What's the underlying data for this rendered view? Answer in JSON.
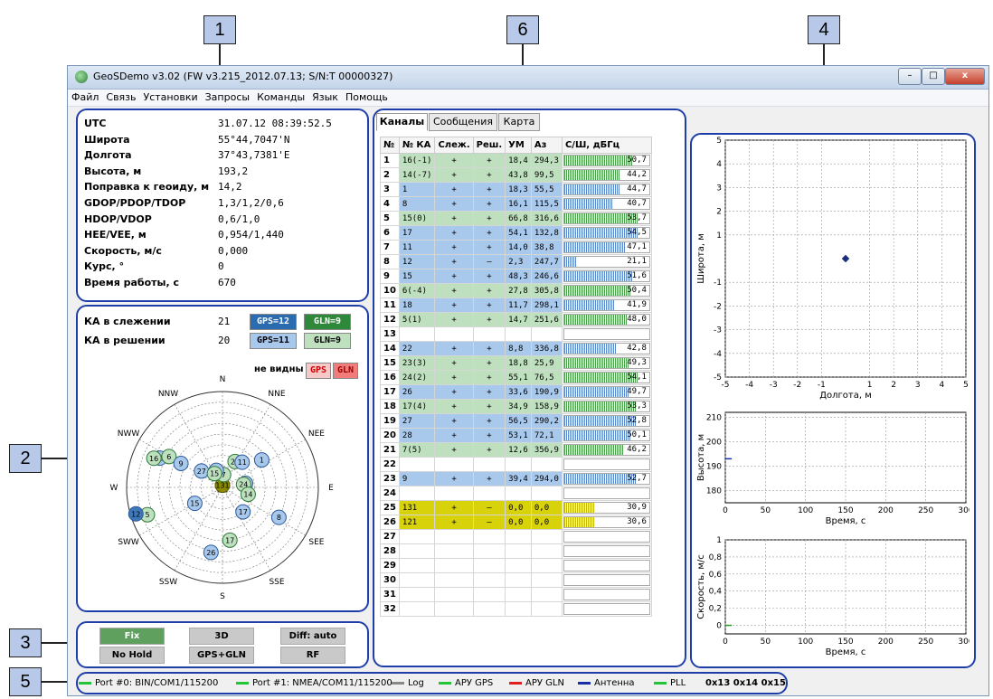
{
  "callouts": [
    "1",
    "2",
    "3",
    "4",
    "5",
    "6"
  ],
  "window": {
    "title": "GeoSDemo v3.02 (FW v3.215_2012.07.13; S/N:T 00000327)",
    "btn_min": "–",
    "btn_max": "□",
    "btn_close": "x"
  },
  "menu": [
    "Файл",
    "Связь",
    "Установки",
    "Запросы",
    "Команды",
    "Язык",
    "Помощь"
  ],
  "info": [
    {
      "label": "UTC",
      "value": "31.07.12 08:39:52.5"
    },
    {
      "label": "Широта",
      "value": "55°44,7047'N"
    },
    {
      "label": "Долгота",
      "value": "37°43,7381'E"
    },
    {
      "label": "Высота, м",
      "value": "193,2"
    },
    {
      "label": "Поправка к геоиду, м",
      "value": "14,2"
    },
    {
      "label": "GDOP/PDOP/TDOP",
      "value": "1,3/1,2/0,6"
    },
    {
      "label": "HDOP/VDOP",
      "value": "0,6/1,0"
    },
    {
      "label": "HEE/VEE, м",
      "value": "0,954/1,440"
    },
    {
      "label": "Скорость, м/с",
      "value": "0,000"
    },
    {
      "label": "Курс, °",
      "value": "0"
    },
    {
      "label": "Время работы, с",
      "value": "670"
    }
  ],
  "tracking": {
    "label": "КА в слежении",
    "count": "21",
    "gps": "GPS=12",
    "gln": "GLN=9"
  },
  "solution": {
    "label": "КА в решении",
    "count": "20",
    "gps": "GPS=11",
    "gln": "GLN=9"
  },
  "skyplot": {
    "not_visible": "не видны",
    "gps": "GPS",
    "gln": "GLN",
    "dirs": [
      "N",
      "NNE",
      "NEE",
      "E",
      "SEE",
      "SSE",
      "S",
      "SSW",
      "SWW",
      "W",
      "NWW",
      "NNW"
    ],
    "sats": [
      {
        "id": "131",
        "az": 0,
        "el": 88,
        "type": "sbas"
      },
      {
        "id": "7",
        "az": 5,
        "el": 78,
        "type": "gln"
      },
      {
        "id": "22",
        "az": 340,
        "el": 73,
        "type": "gps"
      },
      {
        "id": "23",
        "az": 26,
        "el": 63,
        "type": "gln"
      },
      {
        "id": "11",
        "az": 38,
        "el": 60,
        "type": "gps"
      },
      {
        "id": "1",
        "az": 55,
        "el": 45,
        "type": "gps"
      },
      {
        "id": "18",
        "az": 295,
        "el": 25,
        "type": "gps"
      },
      {
        "id": "6",
        "az": 300,
        "el": 32,
        "type": "gln"
      },
      {
        "id": "16",
        "az": 293,
        "el": 20,
        "type": "gln"
      },
      {
        "id": "9",
        "az": 300,
        "el": 45,
        "type": "gps"
      },
      {
        "id": "27",
        "az": 308,
        "el": 65,
        "type": "gps"
      },
      {
        "id": "15",
        "az": 330,
        "el": 75,
        "type": "gln"
      },
      {
        "id": "28",
        "az": 80,
        "el": 68,
        "type": "gps"
      },
      {
        "id": "24",
        "az": 82,
        "el": 70,
        "type": "gln"
      },
      {
        "id": "14",
        "az": 105,
        "el": 65,
        "type": "gln"
      },
      {
        "id": "8",
        "az": 118,
        "el": 30,
        "type": "gps"
      },
      {
        "id": "17",
        "az": 140,
        "el": 60,
        "type": "gps"
      },
      {
        "id": "17",
        "az": 172,
        "el": 40,
        "type": "gln"
      },
      {
        "id": "26",
        "az": 190,
        "el": 28,
        "type": "gps"
      },
      {
        "id": "15",
        "az": 240,
        "el": 60,
        "type": "gps"
      },
      {
        "id": "5",
        "az": 250,
        "el": 15,
        "type": "gln"
      },
      {
        "id": "12",
        "az": 253,
        "el": 5,
        "type": "gps"
      }
    ]
  },
  "controls": [
    "Fix",
    "3D",
    "Diff: auto",
    "No Hold",
    "GPS+GLN",
    "RF"
  ],
  "tabs": [
    "Каналы",
    "Сообщения",
    "Карта"
  ],
  "channels": {
    "headers": [
      "№",
      "№ КА",
      "Слеж.",
      "Реш.",
      "УМ",
      "Аз",
      "С/Ш, дБГц"
    ],
    "rows": [
      {
        "n": "1",
        "ka": "16(-1)",
        "trk": "+",
        "sol": "+",
        "el": "18,4",
        "az": "294,3",
        "snr": "50,7",
        "t": "gln"
      },
      {
        "n": "2",
        "ka": "14(-7)",
        "trk": "+",
        "sol": "+",
        "el": "43,8",
        "az": "99,5",
        "snr": "44,2",
        "t": "gln"
      },
      {
        "n": "3",
        "ka": "1",
        "trk": "+",
        "sol": "+",
        "el": "18,3",
        "az": "55,5",
        "snr": "44,7",
        "t": "gps"
      },
      {
        "n": "4",
        "ka": "8",
        "trk": "+",
        "sol": "+",
        "el": "16,1",
        "az": "115,5",
        "snr": "40,7",
        "t": "gps"
      },
      {
        "n": "5",
        "ka": "15(0)",
        "trk": "+",
        "sol": "+",
        "el": "66,8",
        "az": "316,6",
        "snr": "53,7",
        "t": "gln"
      },
      {
        "n": "6",
        "ka": "17",
        "trk": "+",
        "sol": "+",
        "el": "54,1",
        "az": "132,8",
        "snr": "54,5",
        "t": "gps"
      },
      {
        "n": "7",
        "ka": "11",
        "trk": "+",
        "sol": "+",
        "el": "14,0",
        "az": "38,8",
        "snr": "47,1",
        "t": "gps"
      },
      {
        "n": "8",
        "ka": "12",
        "trk": "+",
        "sol": "–",
        "el": "2,3",
        "az": "247,7",
        "snr": "21,1",
        "t": "gps"
      },
      {
        "n": "9",
        "ka": "15",
        "trk": "+",
        "sol": "+",
        "el": "48,3",
        "az": "246,6",
        "snr": "51,6",
        "t": "gps"
      },
      {
        "n": "10",
        "ka": "6(-4)",
        "trk": "+",
        "sol": "+",
        "el": "27,8",
        "az": "305,8",
        "snr": "50,4",
        "t": "gln"
      },
      {
        "n": "11",
        "ka": "18",
        "trk": "+",
        "sol": "+",
        "el": "11,7",
        "az": "298,1",
        "snr": "41,9",
        "t": "gps"
      },
      {
        "n": "12",
        "ka": "5(1)",
        "trk": "+",
        "sol": "+",
        "el": "14,7",
        "az": "251,6",
        "snr": "48,0",
        "t": "gln"
      },
      {
        "n": "13",
        "ka": "",
        "trk": "",
        "sol": "",
        "el": "",
        "az": "",
        "snr": "",
        "t": ""
      },
      {
        "n": "14",
        "ka": "22",
        "trk": "+",
        "sol": "+",
        "el": "8,8",
        "az": "336,8",
        "snr": "42,8",
        "t": "gps"
      },
      {
        "n": "15",
        "ka": "23(3)",
        "trk": "+",
        "sol": "+",
        "el": "18,8",
        "az": "25,9",
        "snr": "49,3",
        "t": "gln"
      },
      {
        "n": "16",
        "ka": "24(2)",
        "trk": "+",
        "sol": "+",
        "el": "55,1",
        "az": "76,5",
        "snr": "54,1",
        "t": "gln"
      },
      {
        "n": "17",
        "ka": "26",
        "trk": "+",
        "sol": "+",
        "el": "33,6",
        "az": "190,9",
        "snr": "49,7",
        "t": "gps"
      },
      {
        "n": "18",
        "ka": "17(4)",
        "trk": "+",
        "sol": "+",
        "el": "34,9",
        "az": "158,9",
        "snr": "53,3",
        "t": "gln"
      },
      {
        "n": "19",
        "ka": "27",
        "trk": "+",
        "sol": "+",
        "el": "56,5",
        "az": "290,2",
        "snr": "52,8",
        "t": "gps"
      },
      {
        "n": "20",
        "ka": "28",
        "trk": "+",
        "sol": "+",
        "el": "53,1",
        "az": "72,1",
        "snr": "50,1",
        "t": "gps"
      },
      {
        "n": "21",
        "ka": "7(5)",
        "trk": "+",
        "sol": "+",
        "el": "12,6",
        "az": "356,9",
        "snr": "46,2",
        "t": "gln"
      },
      {
        "n": "22",
        "ka": "",
        "trk": "",
        "sol": "",
        "el": "",
        "az": "",
        "snr": "",
        "t": ""
      },
      {
        "n": "23",
        "ka": "9",
        "trk": "+",
        "sol": "+",
        "el": "39,4",
        "az": "294,0",
        "snr": "52,7",
        "t": "gps"
      },
      {
        "n": "24",
        "ka": "",
        "trk": "",
        "sol": "",
        "el": "",
        "az": "",
        "snr": "",
        "t": ""
      },
      {
        "n": "25",
        "ka": "131",
        "trk": "+",
        "sol": "–",
        "el": "0,0",
        "az": "0,0",
        "snr": "30,9",
        "t": "sbas"
      },
      {
        "n": "26",
        "ka": "121",
        "trk": "+",
        "sol": "–",
        "el": "0,0",
        "az": "0,0",
        "snr": "30,6",
        "t": "sbas"
      },
      {
        "n": "27",
        "ka": "",
        "trk": "",
        "sol": "",
        "el": "",
        "az": "",
        "snr": "",
        "t": ""
      },
      {
        "n": "28",
        "ka": "",
        "trk": "",
        "sol": "",
        "el": "",
        "az": "",
        "snr": "",
        "t": ""
      },
      {
        "n": "29",
        "ka": "",
        "trk": "",
        "sol": "",
        "el": "",
        "az": "",
        "snr": "",
        "t": ""
      },
      {
        "n": "30",
        "ka": "",
        "trk": "",
        "sol": "",
        "el": "",
        "az": "",
        "snr": "",
        "t": ""
      },
      {
        "n": "31",
        "ka": "",
        "trk": "",
        "sol": "",
        "el": "",
        "az": "",
        "snr": "",
        "t": ""
      },
      {
        "n": "32",
        "ka": "",
        "trk": "",
        "sol": "",
        "el": "",
        "az": "",
        "snr": "",
        "t": ""
      }
    ]
  },
  "chart_data": [
    {
      "type": "scatter",
      "title": "",
      "xlabel": "Долгота, м",
      "ylabel": "Широта, м",
      "xlim": [
        -5,
        5
      ],
      "ylim": [
        -5,
        5
      ],
      "xticks": [
        "-5",
        "-4",
        "-3",
        "-2",
        "-1",
        "1",
        "2",
        "3",
        "4",
        "5"
      ],
      "yticks": [
        "5",
        "4",
        "3",
        "2",
        "1",
        "-1",
        "-2",
        "-3",
        "-4",
        "-5"
      ],
      "points": [
        {
          "x": 0,
          "y": 0
        }
      ],
      "grid": true
    },
    {
      "type": "line",
      "title": "",
      "xlabel": "Время, с",
      "ylabel": "Высота, м",
      "xlim": [
        0,
        300
      ],
      "ylim": [
        175,
        212
      ],
      "xticks": [
        "0",
        "50",
        "100",
        "150",
        "200",
        "250",
        "300"
      ],
      "yticks": [
        "210",
        "200",
        "190",
        "180"
      ],
      "series": [
        {
          "x": [
            0,
            8
          ],
          "y": [
            193,
            193
          ]
        }
      ],
      "grid": true
    },
    {
      "type": "line",
      "title": "",
      "xlabel": "Время, с",
      "ylabel": "Скорость, м/с",
      "xlim": [
        0,
        300
      ],
      "ylim": [
        -0.1,
        1
      ],
      "xticks": [
        "0",
        "50",
        "100",
        "150",
        "200",
        "250",
        "300"
      ],
      "yticks": [
        "1",
        "0,8",
        "0,6",
        "0,4",
        "0,2",
        "0"
      ],
      "series": [
        {
          "x": [
            0,
            8
          ],
          "y": [
            0,
            0
          ]
        }
      ],
      "grid": true
    }
  ],
  "status": [
    {
      "label": "Port #0: BIN/COM1/115200",
      "color": "#22c43a"
    },
    {
      "label": "Port #1: NMEA/COM11/115200",
      "color": "#22c43a"
    },
    {
      "label": "Log",
      "color": "#888888"
    },
    {
      "label": "АРУ GPS",
      "color": "#22c43a"
    },
    {
      "label": "АРУ GLN",
      "color": "#e02020"
    },
    {
      "label": "Антенна",
      "color": "#1a2ea8"
    },
    {
      "label": "PLL",
      "color": "#22c43a"
    }
  ],
  "status_hex": "0x13 0x14 0x15"
}
